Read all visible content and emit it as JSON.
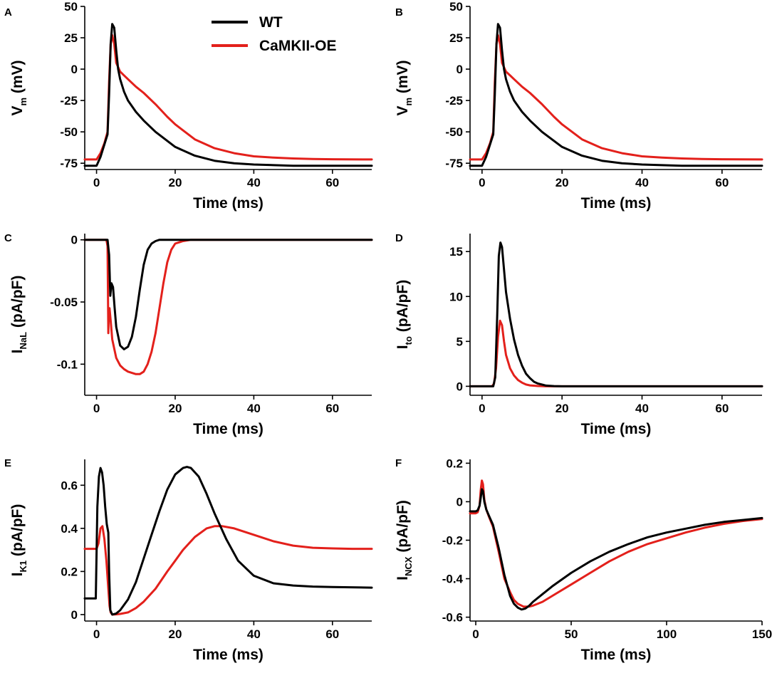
{
  "chart_data": [
    {
      "panel": "A",
      "type": "line",
      "xlabel": "Time (ms)",
      "ylabel": {
        "main": "V",
        "sub": "m",
        "unit": " (mV)"
      },
      "xlim": [
        -3,
        70
      ],
      "ylim": [
        -80,
        50
      ],
      "xticks": [
        {
          "v": 0,
          "label": "0"
        },
        {
          "v": 20,
          "label": "20"
        },
        {
          "v": 40,
          "label": "40"
        },
        {
          "v": 60,
          "label": "60"
        }
      ],
      "yticks": [
        {
          "v": 50,
          "label": "50"
        },
        {
          "v": 25,
          "label": "25"
        },
        {
          "v": 0,
          "label": "0"
        },
        {
          "v": -25,
          "label": "-25"
        },
        {
          "v": -50,
          "label": "-50"
        },
        {
          "v": -75,
          "label": "-75"
        }
      ],
      "series": [
        {
          "name": "CaMKII-OE",
          "color": "#e3201b",
          "x": [
            -3,
            0,
            1,
            2,
            2.8,
            3.2,
            3.6,
            4,
            4.5,
            5,
            6,
            7,
            8,
            10,
            12,
            15,
            18,
            20,
            25,
            30,
            35,
            40,
            45,
            50,
            55,
            60,
            70
          ],
          "y": [
            -72,
            -72,
            -67,
            -59,
            -50,
            -10,
            20,
            27,
            20,
            5,
            -2,
            -5,
            -8,
            -14,
            -19,
            -28,
            -38,
            -44,
            -56,
            -63,
            -67,
            -69.5,
            -70.5,
            -71.2,
            -71.6,
            -71.8,
            -72
          ]
        },
        {
          "name": "WT",
          "color": "#000000",
          "x": [
            -3,
            0,
            1,
            2,
            2.8,
            3.2,
            3.6,
            4,
            4.5,
            5,
            5.5,
            6,
            7,
            8,
            10,
            12,
            15,
            20,
            25,
            30,
            35,
            40,
            50,
            60,
            70
          ],
          "y": [
            -77,
            -77,
            -70,
            -60,
            -52,
            -20,
            20,
            36,
            33,
            15,
            0,
            -8,
            -18,
            -25,
            -34,
            -41,
            -50,
            -62,
            -69,
            -73,
            -75,
            -76,
            -77,
            -77,
            -77
          ]
        }
      ]
    },
    {
      "panel": "B",
      "type": "line",
      "xlabel": "Time (ms)",
      "ylabel": {
        "main": "V",
        "sub": "m",
        "unit": " (mV)"
      },
      "xlim": [
        -3,
        70
      ],
      "ylim": [
        -80,
        50
      ],
      "xticks": [
        {
          "v": 0,
          "label": "0"
        },
        {
          "v": 20,
          "label": "20"
        },
        {
          "v": 40,
          "label": "40"
        },
        {
          "v": 60,
          "label": "60"
        }
      ],
      "yticks": [
        {
          "v": 50,
          "label": "50"
        },
        {
          "v": 25,
          "label": "25"
        },
        {
          "v": 0,
          "label": "0"
        },
        {
          "v": -25,
          "label": "-25"
        },
        {
          "v": -50,
          "label": "-50"
        },
        {
          "v": -75,
          "label": "-75"
        }
      ],
      "series": [
        {
          "name": "CaMKII-OE",
          "color": "#e3201b",
          "x": [
            -3,
            0,
            1,
            2,
            2.8,
            3.2,
            3.6,
            4,
            4.5,
            5,
            6,
            7,
            8,
            10,
            12,
            15,
            18,
            20,
            25,
            30,
            35,
            40,
            45,
            50,
            55,
            60,
            70
          ],
          "y": [
            -72,
            -72,
            -67,
            -59,
            -50,
            -10,
            20,
            27,
            20,
            5,
            -2,
            -5,
            -8,
            -14,
            -19,
            -28,
            -38,
            -44,
            -56,
            -63,
            -67,
            -69.5,
            -70.5,
            -71.2,
            -71.6,
            -71.8,
            -72
          ]
        },
        {
          "name": "WT",
          "color": "#000000",
          "x": [
            -3,
            0,
            1,
            2,
            2.8,
            3.2,
            3.6,
            4,
            4.5,
            5,
            5.5,
            6,
            7,
            8,
            10,
            12,
            15,
            20,
            25,
            30,
            35,
            40,
            50,
            60,
            70
          ],
          "y": [
            -77,
            -77,
            -70,
            -60,
            -52,
            -20,
            20,
            36,
            33,
            15,
            0,
            -8,
            -18,
            -25,
            -34,
            -41,
            -50,
            -62,
            -69,
            -73,
            -75,
            -76,
            -77,
            -77,
            -77
          ]
        }
      ]
    },
    {
      "panel": "C",
      "type": "line",
      "xlabel": "Time (ms)",
      "ylabel": {
        "main": "I",
        "sub": "NaL",
        "unit": " (pA/pF)"
      },
      "xlim": [
        -3,
        70
      ],
      "ylim": [
        -0.125,
        0.005
      ],
      "xticks": [
        {
          "v": 0,
          "label": "0"
        },
        {
          "v": 20,
          "label": "20"
        },
        {
          "v": 40,
          "label": "40"
        },
        {
          "v": 60,
          "label": "60"
        }
      ],
      "yticks": [
        {
          "v": 0,
          "label": "0"
        },
        {
          "v": -0.05,
          "label": "-0.05"
        },
        {
          "v": -0.1,
          "label": "-0.1"
        }
      ],
      "series": [
        {
          "name": "CaMKII-OE",
          "color": "#e3201b",
          "x": [
            -3,
            2.5,
            2.8,
            3.0,
            3.1,
            3.3,
            3.6,
            4,
            5,
            6,
            7,
            8,
            10,
            11,
            12,
            13,
            14,
            15,
            16,
            17,
            18,
            19,
            20,
            22,
            24,
            26,
            30,
            70
          ],
          "y": [
            0,
            0,
            -0.005,
            -0.075,
            -0.06,
            -0.055,
            -0.065,
            -0.08,
            -0.095,
            -0.101,
            -0.104,
            -0.106,
            -0.108,
            -0.108,
            -0.106,
            -0.1,
            -0.09,
            -0.075,
            -0.055,
            -0.035,
            -0.018,
            -0.008,
            -0.003,
            -0.001,
            0,
            0,
            0,
            0
          ]
        },
        {
          "name": "WT",
          "color": "#000000",
          "x": [
            -3,
            2.8,
            3.2,
            3.5,
            3.8,
            4.2,
            4.6,
            5,
            6,
            7,
            8,
            9,
            10,
            11,
            12,
            13,
            14,
            15,
            16,
            18,
            20,
            22,
            70
          ],
          "y": [
            0,
            0,
            -0.012,
            -0.045,
            -0.035,
            -0.038,
            -0.055,
            -0.07,
            -0.085,
            -0.088,
            -0.086,
            -0.078,
            -0.062,
            -0.04,
            -0.02,
            -0.008,
            -0.003,
            -0.001,
            0,
            0,
            0,
            0,
            0
          ]
        }
      ]
    },
    {
      "panel": "D",
      "type": "line",
      "xlabel": "Time (ms)",
      "ylabel": {
        "main": "I",
        "sub": "to",
        "unit": " (pA/pF)"
      },
      "xlim": [
        -3,
        70
      ],
      "ylim": [
        -1,
        17
      ],
      "xticks": [
        {
          "v": 0,
          "label": "0"
        },
        {
          "v": 20,
          "label": "20"
        },
        {
          "v": 40,
          "label": "40"
        },
        {
          "v": 60,
          "label": "60"
        }
      ],
      "yticks": [
        {
          "v": 15,
          "label": "15"
        },
        {
          "v": 10,
          "label": "10"
        },
        {
          "v": 5,
          "label": "5"
        },
        {
          "v": 0,
          "label": "0"
        }
      ],
      "series": [
        {
          "name": "CaMKII-OE",
          "color": "#e3201b",
          "x": [
            -3,
            2.5,
            3.0,
            3.5,
            4.0,
            4.5,
            5,
            5.5,
            6,
            7,
            8,
            9,
            10,
            11,
            12,
            14,
            16,
            20,
            70
          ],
          "y": [
            0,
            0,
            0.3,
            2.0,
            5.5,
            7.3,
            6.8,
            5.0,
            3.5,
            2.0,
            1.2,
            0.7,
            0.4,
            0.2,
            0.1,
            0.03,
            0,
            0,
            0
          ]
        },
        {
          "name": "WT",
          "color": "#000000",
          "x": [
            -3,
            2.8,
            3.3,
            3.8,
            4.2,
            4.6,
            5,
            5.5,
            6,
            7,
            8,
            9,
            10,
            11,
            12,
            13,
            14,
            16,
            18,
            20,
            70
          ],
          "y": [
            0,
            0,
            1.0,
            8.0,
            14.5,
            16.0,
            15.5,
            13.0,
            10.5,
            7.5,
            5.2,
            3.5,
            2.3,
            1.4,
            0.9,
            0.5,
            0.3,
            0.08,
            0.02,
            0,
            0
          ]
        }
      ]
    },
    {
      "panel": "E",
      "type": "line",
      "xlabel": "Time (ms)",
      "ylabel": {
        "main": "I",
        "sub": "K1",
        "unit": " (pA/pF)"
      },
      "xlim": [
        -3,
        70
      ],
      "ylim": [
        -0.03,
        0.72
      ],
      "xticks": [
        {
          "v": 0,
          "label": "0"
        },
        {
          "v": 20,
          "label": "20"
        },
        {
          "v": 40,
          "label": "40"
        },
        {
          "v": 60,
          "label": "60"
        }
      ],
      "yticks": [
        {
          "v": 0.6,
          "label": "0.6"
        },
        {
          "v": 0.4,
          "label": "0.4"
        },
        {
          "v": 0.2,
          "label": "0.2"
        },
        {
          "v": 0,
          "label": "0"
        }
      ],
      "series": [
        {
          "name": "CaMKII-OE",
          "color": "#e3201b",
          "x": [
            -3,
            0,
            0.5,
            1,
            1.5,
            2,
            2.5,
            3,
            3.3,
            3.6,
            4,
            5,
            6,
            8,
            10,
            12,
            15,
            18,
            20,
            22,
            25,
            28,
            30,
            32,
            35,
            40,
            45,
            50,
            55,
            60,
            65,
            70
          ],
          "y": [
            0.305,
            0.305,
            0.33,
            0.4,
            0.41,
            0.35,
            0.25,
            0.12,
            0.04,
            0.01,
            0,
            0.001,
            0.003,
            0.01,
            0.03,
            0.06,
            0.12,
            0.2,
            0.25,
            0.3,
            0.36,
            0.4,
            0.41,
            0.41,
            0.4,
            0.37,
            0.34,
            0.32,
            0.31,
            0.307,
            0.305,
            0.305
          ]
        },
        {
          "name": "WT",
          "color": "#000000",
          "x": [
            -3,
            -0.2,
            0.2,
            0.6,
            1.0,
            1.4,
            1.8,
            2.2,
            2.6,
            3.0,
            3.2,
            3.5,
            4,
            5,
            6,
            8,
            10,
            12,
            14,
            16,
            18,
            20,
            22,
            23,
            24,
            26,
            28,
            30,
            33,
            36,
            40,
            45,
            50,
            55,
            60,
            70
          ],
          "y": [
            0.075,
            0.075,
            0.5,
            0.64,
            0.68,
            0.66,
            0.6,
            0.5,
            0.42,
            0.38,
            0.2,
            0.02,
            0,
            0.005,
            0.02,
            0.07,
            0.15,
            0.26,
            0.37,
            0.48,
            0.58,
            0.65,
            0.68,
            0.685,
            0.68,
            0.64,
            0.56,
            0.47,
            0.35,
            0.25,
            0.18,
            0.145,
            0.135,
            0.13,
            0.128,
            0.125
          ]
        }
      ]
    },
    {
      "panel": "F",
      "type": "line",
      "xlabel": "Time (ms)",
      "ylabel": {
        "main": "I",
        "sub": "NCX",
        "unit": " (pA/pF)"
      },
      "xlim": [
        -3,
        150
      ],
      "ylim": [
        -0.62,
        0.22
      ],
      "xticks": [
        {
          "v": 0,
          "label": "0"
        },
        {
          "v": 50,
          "label": "50"
        },
        {
          "v": 100,
          "label": "100"
        },
        {
          "v": 150,
          "label": "150"
        }
      ],
      "yticks": [
        {
          "v": 0.2,
          "label": "0.2"
        },
        {
          "v": 0,
          "label": "0"
        },
        {
          "v": -0.2,
          "label": "-0.2"
        },
        {
          "v": -0.4,
          "label": "-0.4"
        },
        {
          "v": -0.6,
          "label": "-0.6"
        }
      ],
      "series": [
        {
          "name": "CaMKII-OE",
          "color": "#e3201b",
          "x": [
            -3,
            0,
            1,
            2,
            2.6,
            3.2,
            3.8,
            4.5,
            5.5,
            7,
            9,
            12,
            15,
            18,
            20,
            22,
            25,
            28,
            30,
            35,
            40,
            50,
            60,
            70,
            80,
            90,
            100,
            110,
            120,
            130,
            140,
            150
          ],
          "y": [
            -0.06,
            -0.06,
            -0.055,
            -0.02,
            0.06,
            0.11,
            0.09,
            0.01,
            -0.04,
            -0.08,
            -0.13,
            -0.26,
            -0.4,
            -0.47,
            -0.51,
            -0.53,
            -0.545,
            -0.545,
            -0.54,
            -0.52,
            -0.49,
            -0.43,
            -0.37,
            -0.31,
            -0.26,
            -0.22,
            -0.19,
            -0.16,
            -0.135,
            -0.115,
            -0.1,
            -0.09
          ]
        },
        {
          "name": "WT",
          "color": "#000000",
          "x": [
            -3,
            0,
            1,
            2,
            2.6,
            3.2,
            3.8,
            4.5,
            5.5,
            7,
            9,
            12,
            15,
            18,
            20,
            22,
            24,
            26,
            28,
            30,
            35,
            40,
            50,
            60,
            70,
            80,
            90,
            100,
            110,
            120,
            130,
            140,
            150
          ],
          "y": [
            -0.05,
            -0.05,
            -0.045,
            -0.02,
            0.02,
            0.065,
            0.055,
            0.0,
            -0.04,
            -0.075,
            -0.12,
            -0.24,
            -0.38,
            -0.49,
            -0.53,
            -0.55,
            -0.56,
            -0.555,
            -0.54,
            -0.52,
            -0.48,
            -0.44,
            -0.37,
            -0.31,
            -0.26,
            -0.22,
            -0.185,
            -0.16,
            -0.14,
            -0.12,
            -0.105,
            -0.095,
            -0.085
          ]
        }
      ]
    }
  ],
  "legend": [
    {
      "name": "WT",
      "color": "#000000"
    },
    {
      "name": "CaMKII-OE",
      "color": "#e3201b"
    }
  ]
}
